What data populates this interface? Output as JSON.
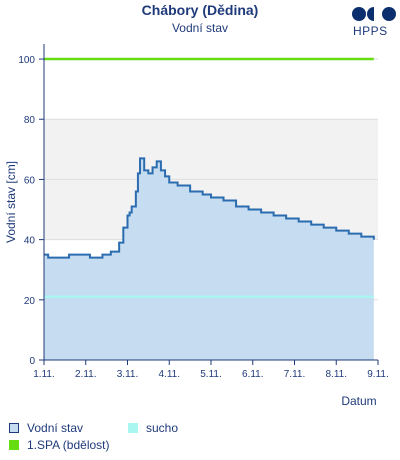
{
  "logo": {
    "text": "HPPS",
    "color": "#0b2e6e"
  },
  "chart_data": {
    "type": "area",
    "title": "Chábory (Dědina)",
    "subtitle": "Vodní stav",
    "xlabel": "Datum",
    "ylabel": "Vodní stav [cm]",
    "ylim": [
      0,
      105
    ],
    "yticks": [
      0,
      20,
      40,
      60,
      80,
      100
    ],
    "x_tick_labels": [
      "1.11.",
      "2.11.",
      "3.11.",
      "4.11.",
      "5.11.",
      "6.11.",
      "7.11.",
      "8.11.",
      "9.11."
    ],
    "bands": [
      {
        "from": 40,
        "to": 80,
        "color": "#f2f2f2"
      }
    ],
    "grid": true,
    "series": [
      {
        "name": "Vodní stav",
        "type": "area",
        "stroke": "#2b6cb0",
        "fill": "#c6dcf0",
        "x": [
          1.0,
          1.1,
          1.4,
          1.6,
          1.9,
          2.1,
          2.4,
          2.6,
          2.8,
          2.9,
          3.0,
          3.05,
          3.1,
          3.2,
          3.25,
          3.3,
          3.4,
          3.5,
          3.6,
          3.7,
          3.8,
          3.9,
          4.0,
          4.2,
          4.5,
          4.8,
          5.0,
          5.3,
          5.6,
          5.9,
          6.2,
          6.5,
          6.8,
          7.1,
          7.4,
          7.7,
          8.0,
          8.3,
          8.6,
          8.9
        ],
        "values": [
          35,
          34,
          34,
          35,
          35,
          34,
          35,
          36,
          39,
          44,
          48,
          49,
          51,
          56,
          62,
          67,
          63,
          62,
          64,
          66,
          63,
          61,
          59,
          58,
          56,
          55,
          54,
          53,
          51,
          50,
          49,
          48,
          47,
          46,
          45,
          44,
          43,
          42,
          41,
          40
        ]
      },
      {
        "name": "sucho",
        "type": "line",
        "color": "#a9f5f0",
        "values": [
          21,
          21
        ]
      },
      {
        "name": "1.SPA (bdělost)",
        "type": "line",
        "color": "#66dd11",
        "values": [
          100,
          100
        ]
      }
    ],
    "legend": {
      "placement": "bottom"
    }
  }
}
